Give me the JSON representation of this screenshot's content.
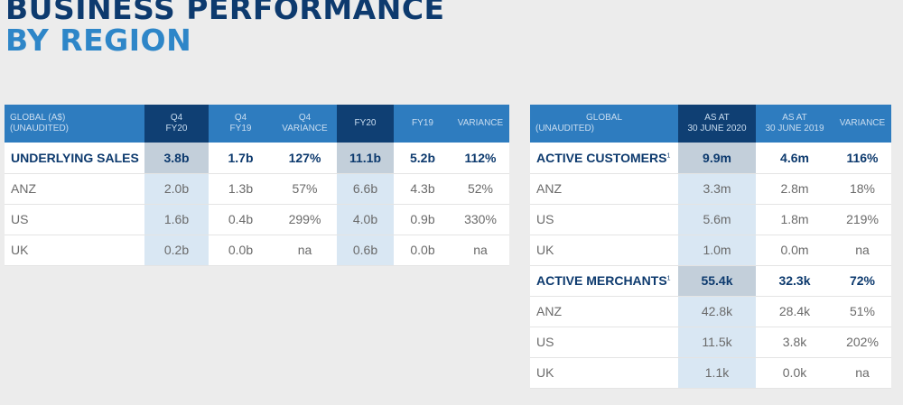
{
  "title": {
    "line1": "BUSINESS PERFORMANCE",
    "line2": "BY REGION"
  },
  "sales_table": {
    "header": {
      "label1": "GLOBAL (A$)",
      "label2": "(UNAUDITED)",
      "q4fy20_1": "Q4",
      "q4fy20_2": "FY20",
      "q4fy19_1": "Q4",
      "q4fy19_2": "FY19",
      "q4var_1": "Q4",
      "q4var_2": "VARIANCE",
      "fy20": "FY20",
      "fy19": "FY19",
      "variance": "VARIANCE"
    },
    "rows": [
      {
        "label": "UNDERLYING SALES",
        "q4fy20": "3.8b",
        "q4fy19": "1.7b",
        "q4var": "127%",
        "fy20": "11.1b",
        "fy19": "5.2b",
        "var": "112%"
      },
      {
        "label": "ANZ",
        "q4fy20": "2.0b",
        "q4fy19": "1.3b",
        "q4var": "57%",
        "fy20": "6.6b",
        "fy19": "4.3b",
        "var": "52%"
      },
      {
        "label": "US",
        "q4fy20": "1.6b",
        "q4fy19": "0.4b",
        "q4var": "299%",
        "fy20": "4.0b",
        "fy19": "0.9b",
        "var": "330%"
      },
      {
        "label": "UK",
        "q4fy20": "0.2b",
        "q4fy19": "0.0b",
        "q4var": "na",
        "fy20": "0.6b",
        "fy19": "0.0b",
        "var": "na"
      }
    ]
  },
  "customers_table": {
    "header": {
      "label1": "GLOBAL",
      "label2": "(UNAUDITED)",
      "c1_1": "AS AT",
      "c1_2": "30 JUNE 2020",
      "c2_1": "AS AT",
      "c2_2": "30 JUNE 2019",
      "c3": "VARIANCE"
    },
    "rows": [
      {
        "label": "ACTIVE CUSTOMERS",
        "sup": "1",
        "c1": "9.9m",
        "c2": "4.6m",
        "c3": "116%",
        "bold": true
      },
      {
        "label": "ANZ",
        "c1": "3.3m",
        "c2": "2.8m",
        "c3": "18%"
      },
      {
        "label": "US",
        "c1": "5.6m",
        "c2": "1.8m",
        "c3": "219%"
      },
      {
        "label": "UK",
        "c1": "1.0m",
        "c2": "0.0m",
        "c3": "na"
      },
      {
        "label": "ACTIVE MERCHANTS",
        "sup": "1",
        "c1": "55.4k",
        "c2": "32.3k",
        "c3": "72%",
        "bold": true
      },
      {
        "label": "ANZ",
        "c1": "42.8k",
        "c2": "28.4k",
        "c3": "51%"
      },
      {
        "label": "US",
        "c1": "11.5k",
        "c2": "3.8k",
        "c3": "202%"
      },
      {
        "label": "UK",
        "c1": "1.1k",
        "c2": "0.0k",
        "c3": "na"
      }
    ]
  }
}
